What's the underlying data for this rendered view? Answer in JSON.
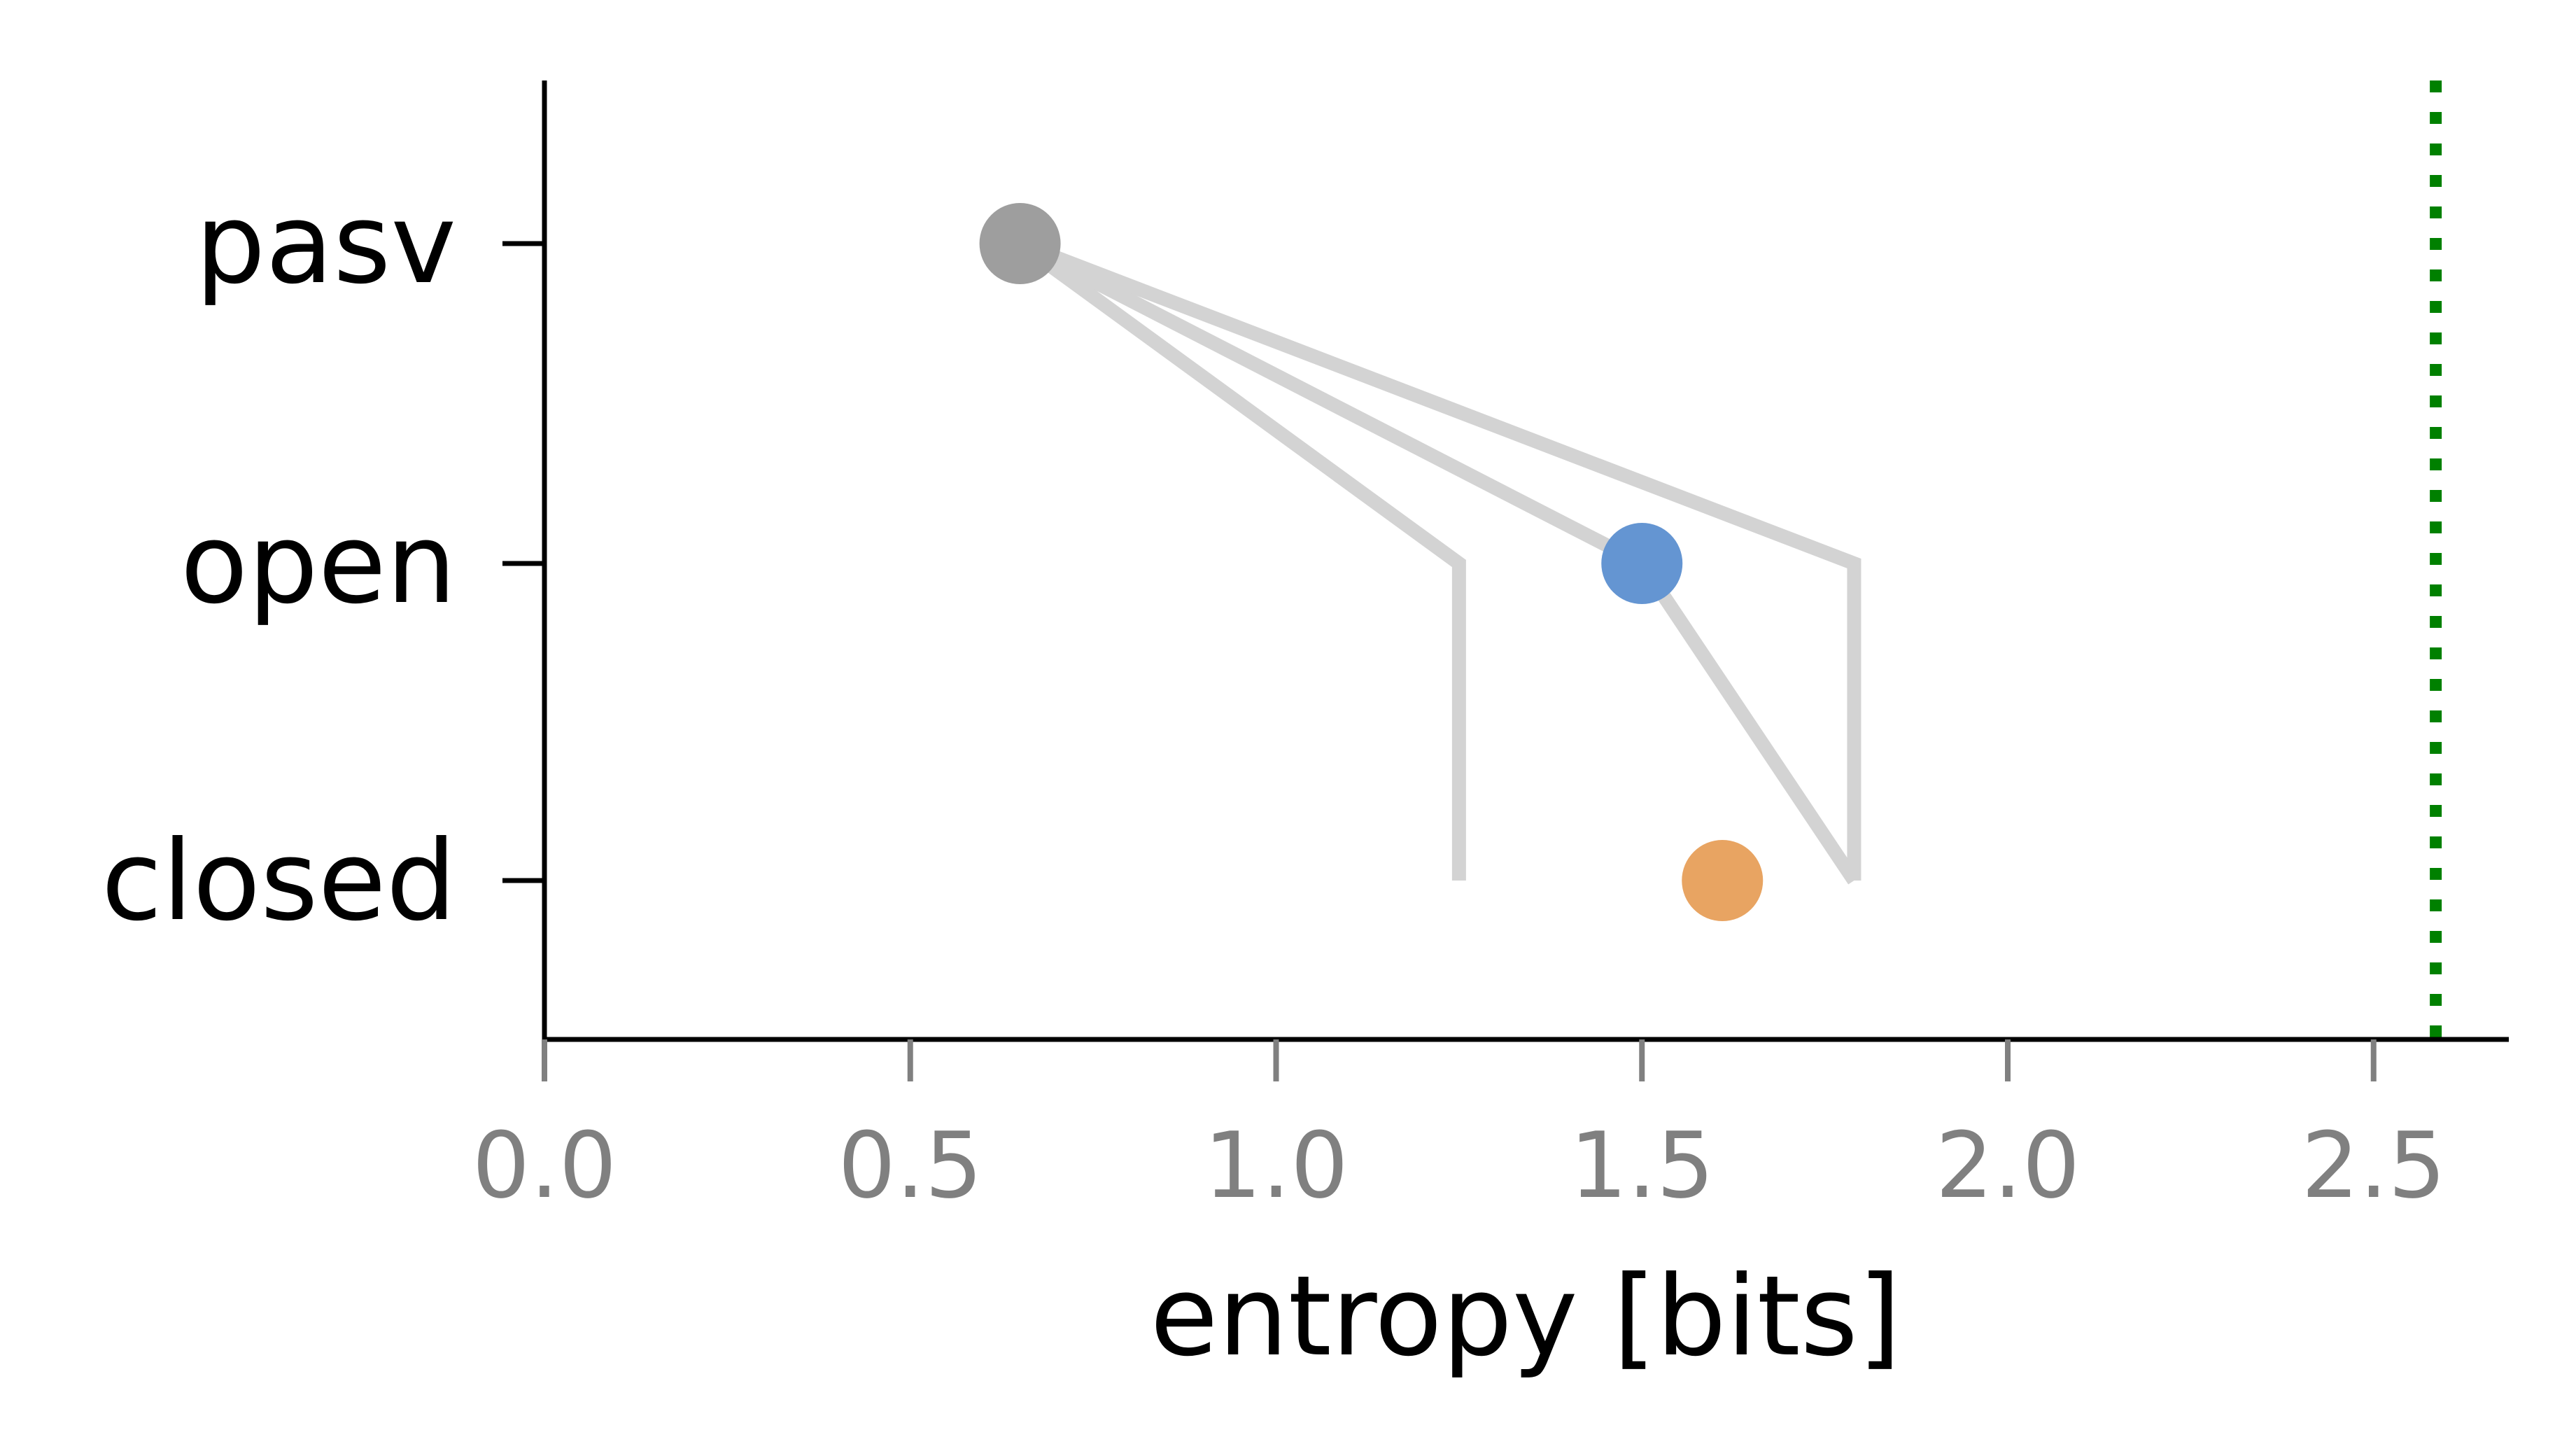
{
  "chart_data": {
    "type": "scatter",
    "title": "",
    "xlabel": "entropy [bits]",
    "ylabel": "",
    "xlim": [
      0,
      2.7
    ],
    "x_ticks": [
      0.0,
      0.5,
      1.0,
      1.5,
      2.0,
      2.5
    ],
    "x_tick_labels": [
      "0.0",
      "0.5",
      "1.0",
      "1.5",
      "2.0",
      "2.5"
    ],
    "categories": [
      "closed",
      "open",
      "pasv"
    ],
    "points": [
      {
        "category": "pasv",
        "x": 0.65,
        "color": "#9e9e9e"
      },
      {
        "category": "open",
        "x": 1.5,
        "color": "#6495d2"
      },
      {
        "category": "closed",
        "x": 1.61,
        "color": "#e8a462"
      }
    ],
    "paths": [
      {
        "color": "#d3d3d3",
        "points": [
          {
            "x": 0.65,
            "category": "pasv"
          },
          {
            "x": 1.25,
            "category": "open"
          },
          {
            "x": 1.25,
            "category": "closed"
          }
        ]
      },
      {
        "color": "#d3d3d3",
        "points": [
          {
            "x": 0.65,
            "category": "pasv"
          },
          {
            "x": 1.5,
            "category": "open"
          },
          {
            "x": 1.79,
            "category": "closed"
          }
        ]
      },
      {
        "color": "#d3d3d3",
        "points": [
          {
            "x": 0.65,
            "category": "pasv"
          },
          {
            "x": 1.79,
            "category": "open"
          },
          {
            "x": 1.79,
            "category": "closed"
          }
        ]
      }
    ],
    "reference_line": {
      "x": 2.585,
      "color": "#008000",
      "style": "dotted"
    },
    "grid": false,
    "legend": "none"
  }
}
